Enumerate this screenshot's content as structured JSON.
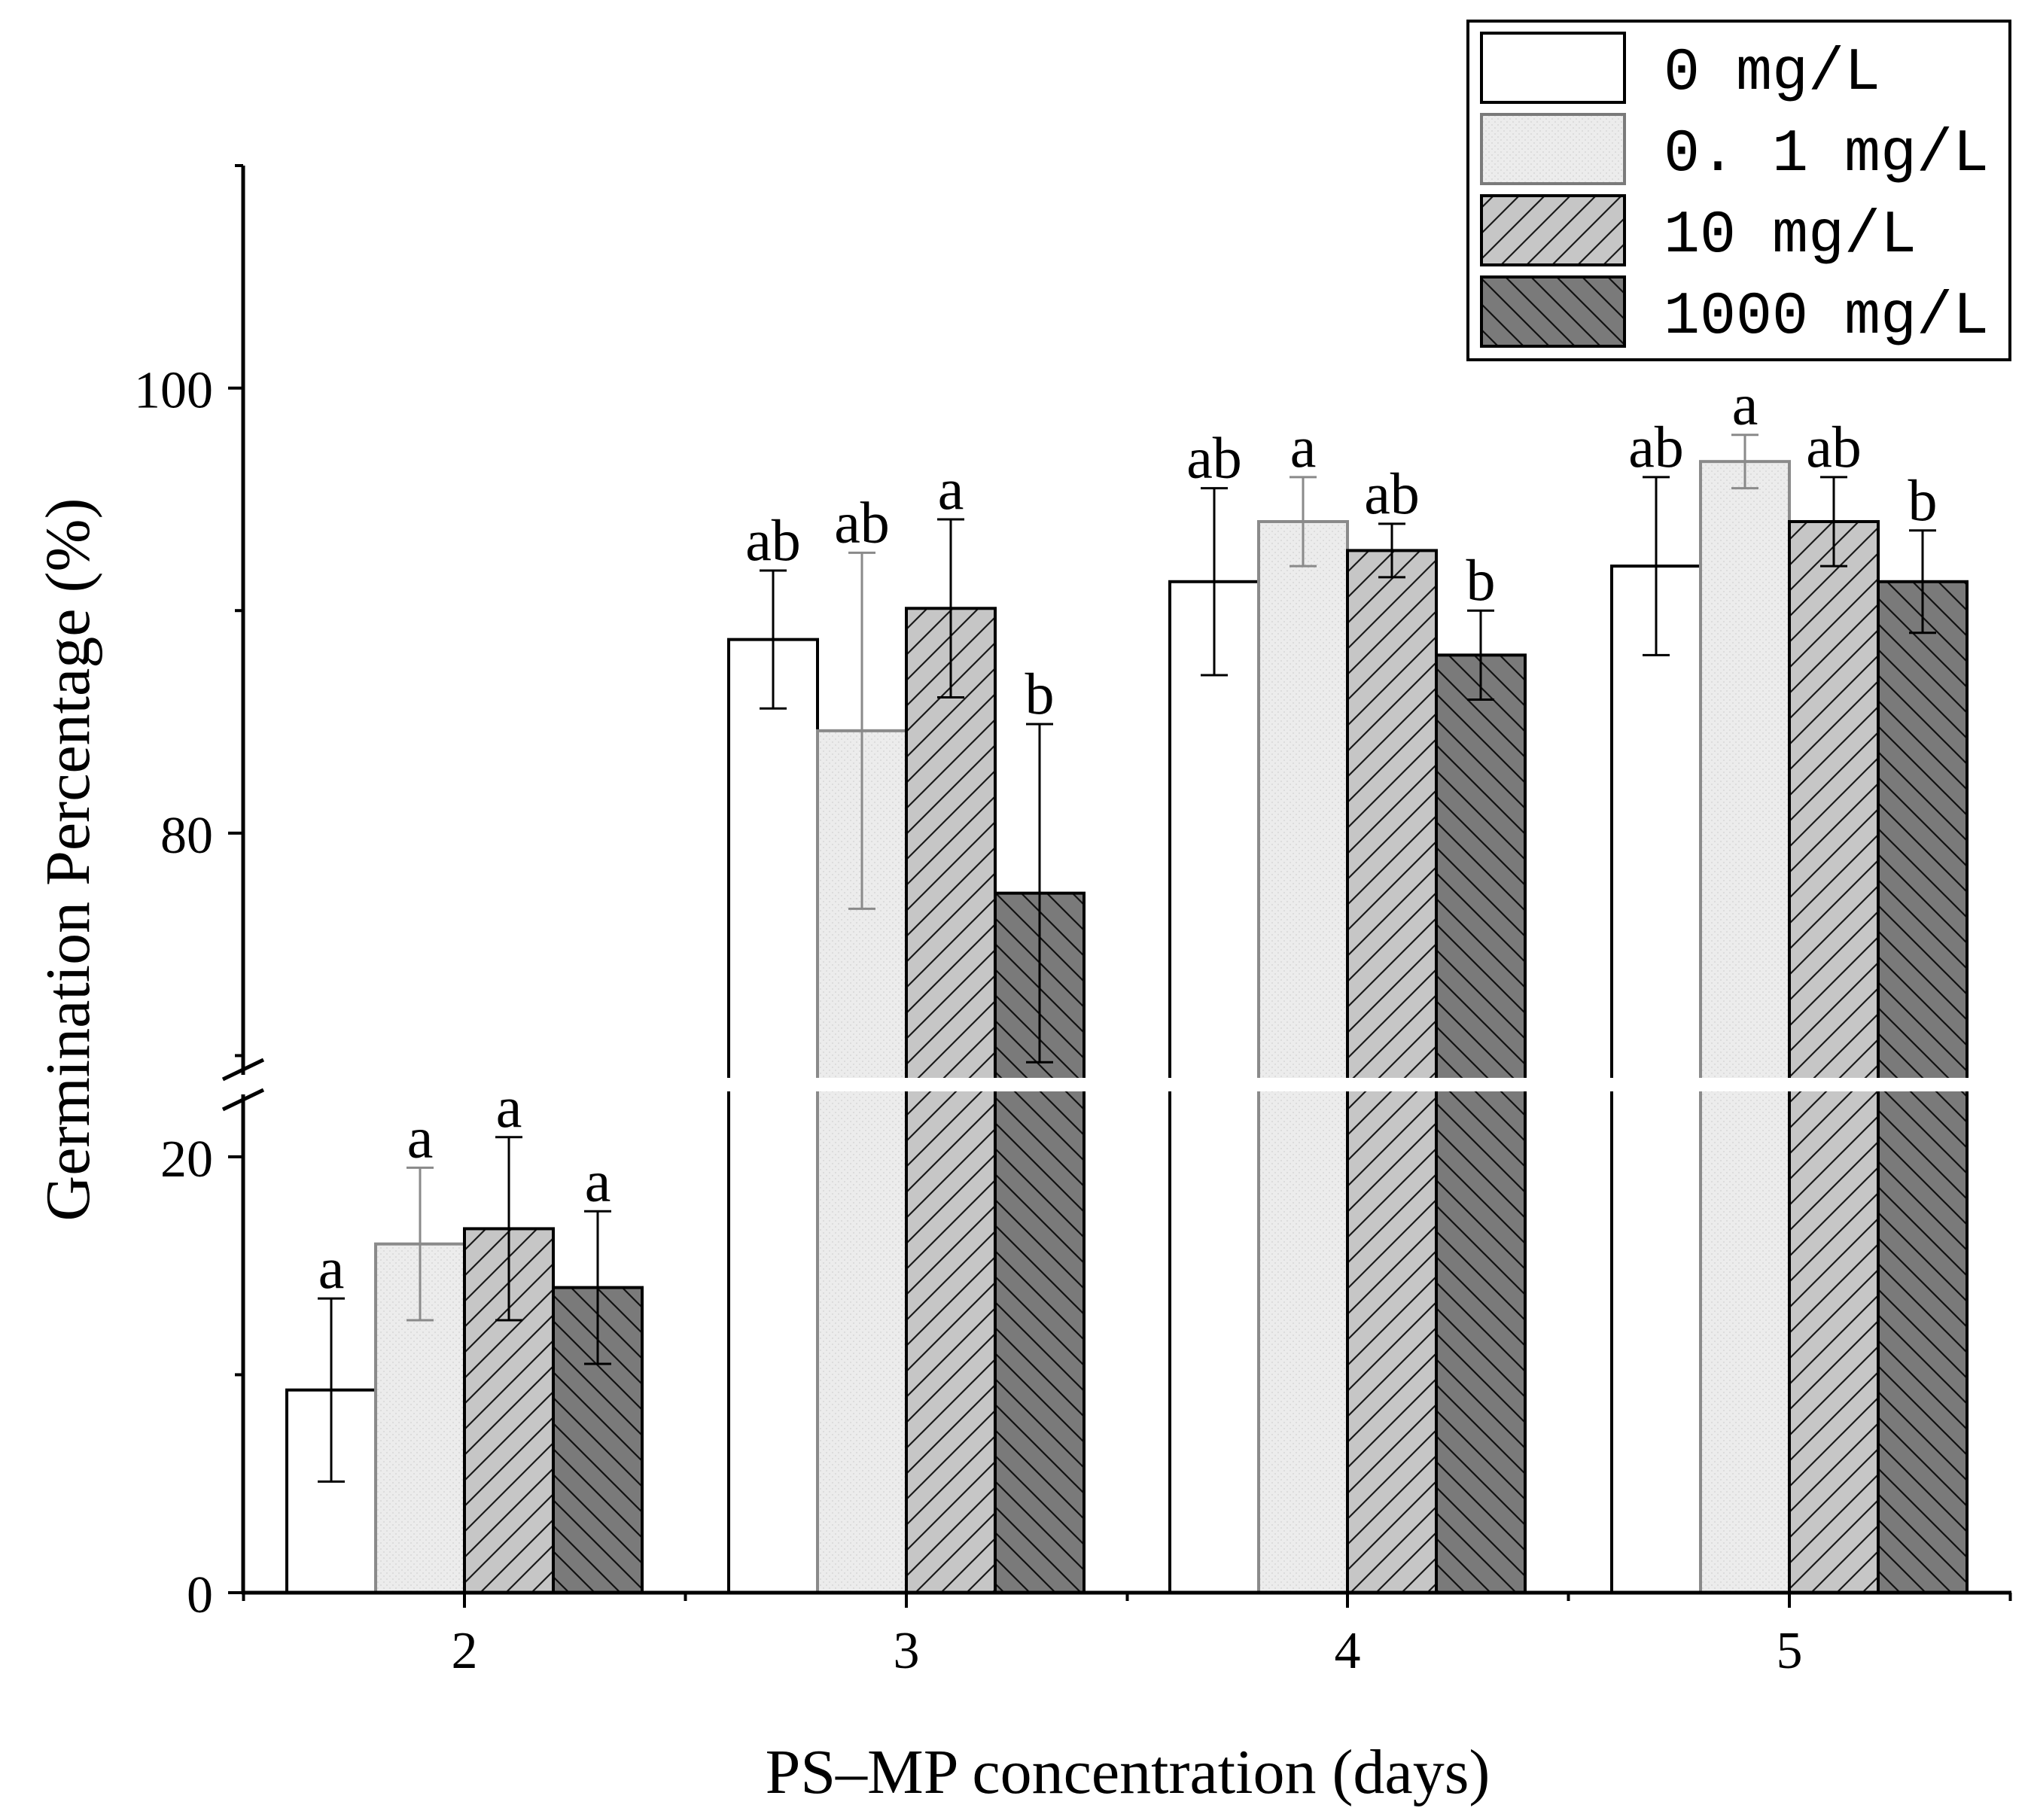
{
  "chart_data": {
    "type": "bar",
    "title": "",
    "xlabel": "PS–MP concentration (days)",
    "ylabel": "Germination Percentage (%)",
    "categories": [
      "2",
      "3",
      "4",
      "5"
    ],
    "axis_break": {
      "lower_range": [
        0,
        23
      ],
      "upper_range": [
        69,
        110
      ]
    },
    "y_ticks_lower": [
      "0",
      "20"
    ],
    "y_ticks_upper": [
      "80",
      "100"
    ],
    "series": [
      {
        "name": "0 mg/L",
        "pattern": "none",
        "color": "#ffffff",
        "values": [
          9.3,
          88.7,
          91.3,
          92.0
        ],
        "errors": [
          4.2,
          3.1,
          4.2,
          4.0
        ],
        "letters": [
          "a",
          "ab",
          "ab",
          "ab"
        ]
      },
      {
        "name": "0.1 mg/L",
        "pattern": "dots",
        "color": "#ececec",
        "values": [
          16.0,
          84.6,
          94.0,
          96.7
        ],
        "errors": [
          3.5,
          8.0,
          2.0,
          1.2
        ],
        "letters": [
          "a",
          "ab",
          "a",
          "a"
        ]
      },
      {
        "name": "10 mg/L",
        "pattern": "diagonal-up",
        "color": "#c6c6c6",
        "values": [
          16.7,
          90.1,
          92.7,
          94.0
        ],
        "errors": [
          4.2,
          4.0,
          1.2,
          2.0
        ],
        "letters": [
          "a",
          "a",
          "ab",
          "ab"
        ]
      },
      {
        "name": "1000 mg/L",
        "pattern": "diagonal-down",
        "color": "#7a7a7a",
        "values": [
          14.0,
          77.3,
          88.0,
          91.3
        ],
        "errors": [
          3.5,
          7.6,
          2.0,
          2.3
        ],
        "letters": [
          "a",
          "b",
          "b",
          "b"
        ]
      }
    ],
    "legend_position": "top-right",
    "legend_labels": [
      "0 mg/L",
      "0. 1 mg/L",
      "10 mg/L",
      "1000 mg/L"
    ]
  }
}
